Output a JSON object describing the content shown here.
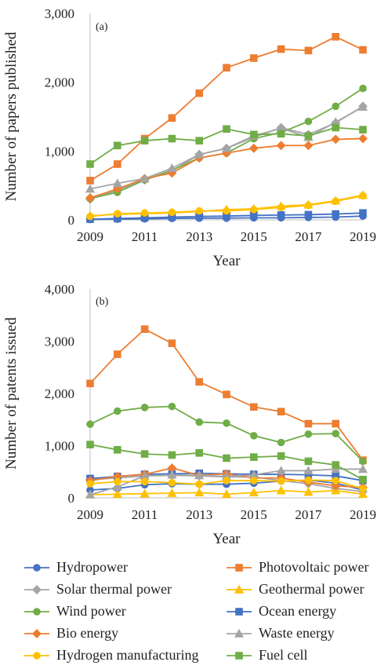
{
  "legend_order": [
    "Hydropower",
    "Photovoltaic power",
    "Solar thermal power",
    "Geothermal power",
    "Wind power",
    "Ocean energy",
    "Bio energy",
    "Waste energy",
    "Hydrogen manufacturing",
    "Fuel cell"
  ],
  "series_styles": {
    "Hydropower": {
      "color": "#4472c4",
      "marker": "circle"
    },
    "Photovoltaic power": {
      "color": "#ed7d31",
      "marker": "square"
    },
    "Solar thermal power": {
      "color": "#a5a5a5",
      "marker": "diamond"
    },
    "Geothermal power": {
      "color": "#ffc000",
      "marker": "triangle"
    },
    "Wind power": {
      "color": "#70ad47",
      "marker": "circle"
    },
    "Ocean energy": {
      "color": "#4472c4",
      "marker": "square"
    },
    "Bio energy": {
      "color": "#ed7d31",
      "marker": "diamond"
    },
    "Waste energy": {
      "color": "#a5a5a5",
      "marker": "triangle"
    },
    "Hydrogen manufacturing": {
      "color": "#ffc000",
      "marker": "circle"
    },
    "Fuel cell": {
      "color": "#70ad47",
      "marker": "square"
    }
  },
  "chart_data": [
    {
      "type": "line",
      "tag": "(a)",
      "title": "",
      "xlabel": "Year",
      "ylabel": "Number of papers published",
      "x": [
        2009,
        2010,
        2011,
        2012,
        2013,
        2014,
        2015,
        2016,
        2017,
        2018,
        2019
      ],
      "xticks": [
        "2009",
        "2011",
        "2013",
        "2015",
        "2017",
        "2019"
      ],
      "yticks": [
        "0",
        "1,000",
        "2,000",
        "3,000"
      ],
      "ylim": [
        0,
        3000
      ],
      "series": [
        {
          "name": "Hydropower",
          "values": [
            5,
            10,
            15,
            20,
            25,
            25,
            30,
            30,
            35,
            40,
            55
          ]
        },
        {
          "name": "Photovoltaic power",
          "values": [
            570,
            810,
            1180,
            1480,
            1840,
            2210,
            2350,
            2480,
            2460,
            2660,
            2470
          ]
        },
        {
          "name": "Solar thermal power",
          "values": [
            300,
            430,
            580,
            710,
            950,
            1040,
            1200,
            1340,
            1240,
            1410,
            1650
          ]
        },
        {
          "name": "Geothermal power",
          "values": [
            60,
            80,
            90,
            100,
            120,
            150,
            160,
            200,
            220,
            280,
            360
          ]
        },
        {
          "name": "Wind power",
          "values": [
            310,
            400,
            580,
            720,
            900,
            970,
            1180,
            1270,
            1430,
            1650,
            1910
          ]
        },
        {
          "name": "Ocean energy",
          "values": [
            10,
            20,
            30,
            40,
            50,
            55,
            65,
            70,
            75,
            85,
            100
          ]
        },
        {
          "name": "Bio energy",
          "values": [
            320,
            450,
            600,
            680,
            900,
            970,
            1040,
            1080,
            1080,
            1170,
            1180
          ]
        },
        {
          "name": "Waste energy",
          "values": [
            450,
            530,
            600,
            750,
            950,
            1040,
            1220,
            1330,
            1200,
            1420,
            1640
          ]
        },
        {
          "name": "Hydrogen manufacturing",
          "values": [
            50,
            90,
            100,
            110,
            130,
            130,
            150,
            180,
            210,
            270,
            350
          ]
        },
        {
          "name": "Fuel cell",
          "values": [
            810,
            1080,
            1150,
            1180,
            1150,
            1320,
            1240,
            1250,
            1220,
            1340,
            1310
          ]
        }
      ]
    },
    {
      "type": "line",
      "tag": "(b)",
      "title": "",
      "xlabel": "Year",
      "ylabel": "Number of patents issued",
      "x": [
        2009,
        2010,
        2011,
        2012,
        2013,
        2014,
        2015,
        2016,
        2017,
        2018,
        2019
      ],
      "xticks": [
        "2009",
        "2011",
        "2013",
        "2015",
        "2017",
        "2019"
      ],
      "yticks": [
        "0",
        "1,000",
        "2,000",
        "3,000",
        "4,000"
      ],
      "ylim": [
        0,
        4000
      ],
      "series": [
        {
          "name": "Hydropower",
          "values": [
            150,
            180,
            250,
            270,
            260,
            260,
            280,
            320,
            340,
            280,
            150
          ]
        },
        {
          "name": "Photovoltaic power",
          "values": [
            2190,
            2750,
            3230,
            2960,
            2220,
            1980,
            1740,
            1650,
            1420,
            1420,
            720
          ]
        },
        {
          "name": "Solar thermal power",
          "values": [
            350,
            380,
            420,
            430,
            420,
            400,
            400,
            330,
            270,
            180,
            120
          ]
        },
        {
          "name": "Geothermal power",
          "values": [
            60,
            70,
            80,
            90,
            100,
            70,
            100,
            140,
            110,
            140,
            70
          ]
        },
        {
          "name": "Wind power",
          "values": [
            1410,
            1660,
            1730,
            1750,
            1450,
            1430,
            1190,
            1060,
            1220,
            1230,
            700
          ]
        },
        {
          "name": "Ocean energy",
          "values": [
            370,
            410,
            450,
            460,
            470,
            460,
            450,
            450,
            440,
            420,
            330
          ]
        },
        {
          "name": "Bio energy",
          "values": [
            330,
            410,
            450,
            570,
            430,
            460,
            380,
            380,
            300,
            230,
            200
          ]
        },
        {
          "name": "Waste energy",
          "values": [
            60,
            210,
            420,
            440,
            430,
            410,
            440,
            520,
            520,
            550,
            550
          ]
        },
        {
          "name": "Hydrogen manufacturing",
          "values": [
            270,
            310,
            310,
            290,
            260,
            330,
            330,
            320,
            340,
            330,
            170
          ]
        },
        {
          "name": "Fuel cell",
          "values": [
            1020,
            920,
            840,
            820,
            860,
            760,
            780,
            800,
            700,
            630,
            350
          ]
        }
      ]
    }
  ]
}
